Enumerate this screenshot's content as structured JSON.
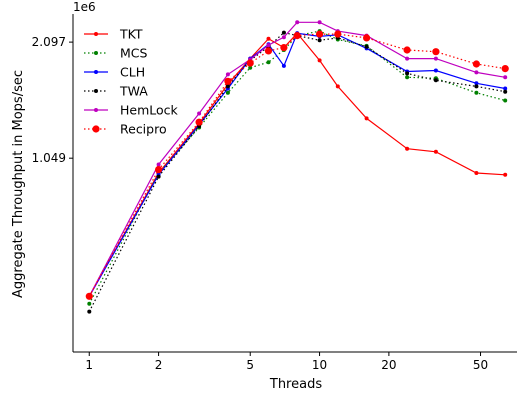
{
  "chart_data": {
    "type": "line",
    "title": "",
    "xlabel": "Threads",
    "ylabel": "Aggregate Throughput in Mops/sec",
    "xscale": "log",
    "yscale": "log",
    "xlim": [
      0.85,
      72
    ],
    "ylim": [
      330000,
      2480000
    ],
    "x_ticks": [
      1,
      2,
      5,
      10,
      20,
      50
    ],
    "x_tick_labels": [
      "1",
      "2",
      "5",
      "10",
      "20",
      "50"
    ],
    "y_ticks": [
      1049000,
      2097000
    ],
    "y_tick_labels": [
      "1.049",
      "2.097"
    ],
    "y_offset_label": "1e6",
    "grid": false,
    "legend_position": "top-left",
    "series": [
      {
        "name": "TKT",
        "color": "#ff0000",
        "linestyle": "solid",
        "marker": "small-dot",
        "x": [
          1,
          2,
          3,
          4,
          5,
          6,
          7,
          8,
          10,
          12,
          16,
          24,
          32,
          48,
          64
        ],
        "y": [
          460000,
          960000,
          1290000,
          1630000,
          1900000,
          2140000,
          2030000,
          2210000,
          1880000,
          1610000,
          1330000,
          1110000,
          1090000,
          960000,
          950000
        ]
      },
      {
        "name": "MCS",
        "color": "#008000",
        "linestyle": "dotted",
        "marker": "small-dot",
        "x": [
          1,
          2,
          3,
          4,
          5,
          6,
          7,
          8,
          10,
          12,
          16,
          24,
          32,
          48,
          64
        ],
        "y": [
          440000,
          960000,
          1260000,
          1550000,
          1800000,
          1860000,
          2000000,
          2180000,
          2240000,
          2130000,
          2050000,
          1700000,
          1690000,
          1550000,
          1480000
        ]
      },
      {
        "name": "CLH",
        "color": "#0000ff",
        "linestyle": "solid",
        "marker": "small-dot",
        "x": [
          1,
          2,
          3,
          4,
          5,
          6,
          7,
          8,
          10,
          12,
          16,
          24,
          32,
          48,
          64
        ],
        "y": [
          460000,
          950000,
          1280000,
          1590000,
          1900000,
          2070000,
          1820000,
          2210000,
          2170000,
          2190000,
          2020000,
          1760000,
          1770000,
          1640000,
          1590000
        ]
      },
      {
        "name": "TWA",
        "color": "#000000",
        "linestyle": "dotted",
        "marker": "small-dot",
        "x": [
          1,
          2,
          3,
          4,
          5,
          6,
          7,
          8,
          10,
          12,
          16,
          24,
          32,
          48,
          64
        ],
        "y": [
          420000,
          940000,
          1270000,
          1610000,
          1880000,
          2040000,
          2220000,
          2180000,
          2120000,
          2150000,
          2040000,
          1740000,
          1670000,
          1610000,
          1560000
        ]
      },
      {
        "name": "HemLock",
        "color": "#bf00bf",
        "linestyle": "solid",
        "marker": "small-dot",
        "x": [
          1,
          2,
          3,
          4,
          5,
          6,
          7,
          8,
          10,
          12,
          16,
          24,
          32,
          48,
          64
        ],
        "y": [
          460000,
          1010000,
          1370000,
          1730000,
          1890000,
          2060000,
          2160000,
          2360000,
          2360000,
          2240000,
          2180000,
          1900000,
          1900000,
          1750000,
          1700000
        ]
      },
      {
        "name": "Recipro",
        "color": "#ff0000",
        "linestyle": "dotted",
        "marker": "large-dot",
        "x": [
          1,
          2,
          3,
          4,
          5,
          6,
          7,
          8,
          10,
          12,
          16,
          24,
          32,
          48,
          64
        ],
        "y": [
          460000,
          980000,
          1300000,
          1660000,
          1850000,
          1990000,
          2030000,
          2180000,
          2200000,
          2200000,
          2150000,
          2000000,
          1980000,
          1840000,
          1790000
        ]
      }
    ]
  }
}
